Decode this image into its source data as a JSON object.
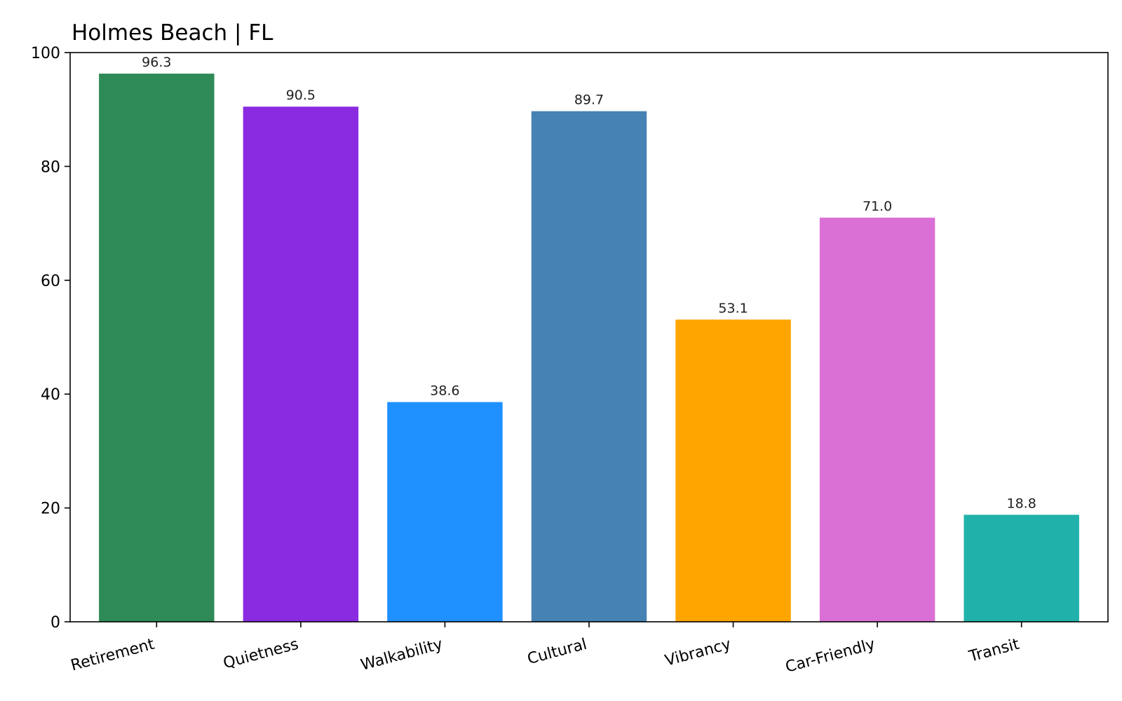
{
  "chart_data": {
    "type": "bar",
    "title": "Holmes Beach | FL",
    "xlabel": "",
    "ylabel": "",
    "ylim": [
      0,
      100
    ],
    "yticks": [
      0,
      20,
      40,
      60,
      80,
      100
    ],
    "grid": false,
    "legend": "none",
    "categories": [
      "Retirement",
      "Quietness",
      "Walkability",
      "Cultural",
      "Vibrancy",
      "Car-Friendly",
      "Transit"
    ],
    "values": [
      96.3,
      90.5,
      38.6,
      89.7,
      53.1,
      71.0,
      18.8
    ],
    "value_labels": [
      "96.3",
      "90.5",
      "38.6",
      "89.7",
      "53.1",
      "71.0",
      "18.8"
    ],
    "colors": [
      "#2e8b57",
      "#8a2be2",
      "#1e90ff",
      "#4682b4",
      "#ffa500",
      "#da70d6",
      "#20b2aa"
    ]
  }
}
